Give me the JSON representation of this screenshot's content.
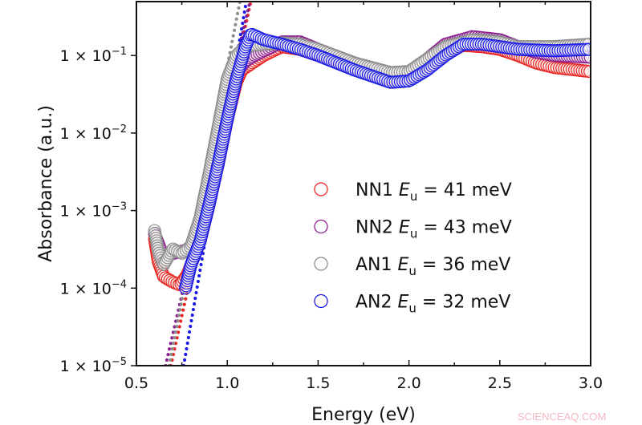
{
  "chart_data": {
    "type": "scatter",
    "title": "",
    "xlabel": "Energy (eV)",
    "ylabel": "Absorbance (a.u.)",
    "xlim": [
      0.5,
      3.0
    ],
    "ylim": [
      1e-05,
      0.5
    ],
    "yscale": "log",
    "grid": false,
    "legend_position": "center-right",
    "x_ticks": [
      "0.5",
      "1.0",
      "1.5",
      "2.0",
      "2.5",
      "3.0"
    ],
    "x_tick_values": [
      0.5,
      1.0,
      1.5,
      2.0,
      2.5,
      3.0
    ],
    "y_ticks": [
      {
        "value": 1e-05,
        "mantissa": "1 × 10",
        "exp": "−5"
      },
      {
        "value": 0.0001,
        "mantissa": "1 × 10",
        "exp": "−4"
      },
      {
        "value": 0.001,
        "mantissa": "1 × 10",
        "exp": "−3"
      },
      {
        "value": 0.01,
        "mantissa": "1 × 10",
        "exp": "−2"
      },
      {
        "value": 0.1,
        "mantissa": "1 × 10",
        "exp": "−1"
      }
    ],
    "series": [
      {
        "name": "NN1",
        "legend_prefix": "NN1 ",
        "legend_var": "E",
        "legend_sub": "u",
        "legend_suffix": " = 41 meV",
        "color": "#e8231f",
        "points": [
          [
            0.6,
            0.00043
          ],
          [
            0.62,
            0.00022
          ],
          [
            0.65,
            0.00014
          ],
          [
            0.7,
            0.00012
          ],
          [
            0.74,
            0.00011
          ],
          [
            0.78,
            0.00015
          ],
          [
            0.85,
            0.0004
          ],
          [
            0.9,
            0.0012
          ],
          [
            0.95,
            0.004
          ],
          [
            1.0,
            0.015
          ],
          [
            1.05,
            0.045
          ],
          [
            1.08,
            0.065
          ],
          [
            1.12,
            0.075
          ],
          [
            1.2,
            0.1
          ],
          [
            1.3,
            0.13
          ],
          [
            1.4,
            0.12
          ],
          [
            1.5,
            0.1
          ],
          [
            1.7,
            0.07
          ],
          [
            1.9,
            0.05
          ],
          [
            2.0,
            0.052
          ],
          [
            2.1,
            0.07
          ],
          [
            2.2,
            0.11
          ],
          [
            2.3,
            0.135
          ],
          [
            2.4,
            0.13
          ],
          [
            2.5,
            0.12
          ],
          [
            2.6,
            0.1
          ],
          [
            2.7,
            0.08
          ],
          [
            2.8,
            0.07
          ],
          [
            3.0,
            0.062
          ]
        ],
        "fit": [
          [
            0.69,
            1e-05
          ],
          [
            1.13,
            0.5
          ]
        ]
      },
      {
        "name": "NN2",
        "legend_prefix": "NN2 ",
        "legend_var": "E",
        "legend_sub": "u",
        "legend_suffix": " = 43 meV",
        "color": "#8a1f8f",
        "points": [
          [
            0.6,
            0.0005
          ],
          [
            0.65,
            0.00025
          ],
          [
            0.7,
            0.00028
          ],
          [
            0.8,
            0.00032
          ],
          [
            0.85,
            0.0006
          ],
          [
            0.9,
            0.002
          ],
          [
            0.95,
            0.007
          ],
          [
            1.0,
            0.025
          ],
          [
            1.05,
            0.06
          ],
          [
            1.1,
            0.085
          ],
          [
            1.15,
            0.1
          ],
          [
            1.3,
            0.15
          ],
          [
            1.4,
            0.15
          ],
          [
            1.5,
            0.12
          ],
          [
            1.7,
            0.08
          ],
          [
            1.9,
            0.06
          ],
          [
            2.0,
            0.062
          ],
          [
            2.1,
            0.09
          ],
          [
            2.2,
            0.14
          ],
          [
            2.35,
            0.175
          ],
          [
            2.5,
            0.16
          ],
          [
            2.6,
            0.13
          ],
          [
            2.7,
            0.11
          ],
          [
            2.8,
            0.1
          ],
          [
            3.0,
            0.095
          ]
        ],
        "fit": [
          [
            0.66,
            1e-05
          ],
          [
            1.125,
            0.5
          ]
        ]
      },
      {
        "name": "AN1",
        "legend_prefix": "AN1 ",
        "legend_var": "E",
        "legend_sub": "u",
        "legend_suffix": " = 36 meV",
        "color": "#8c8c8c",
        "points": [
          [
            0.6,
            0.00055
          ],
          [
            0.62,
            0.0003
          ],
          [
            0.65,
            0.0002
          ],
          [
            0.7,
            0.00032
          ],
          [
            0.75,
            0.00028
          ],
          [
            0.8,
            0.00035
          ],
          [
            0.85,
            0.0008
          ],
          [
            0.9,
            0.003
          ],
          [
            0.95,
            0.012
          ],
          [
            1.0,
            0.05
          ],
          [
            1.05,
            0.1
          ],
          [
            1.1,
            0.13
          ],
          [
            1.2,
            0.14
          ],
          [
            1.3,
            0.145
          ],
          [
            1.4,
            0.14
          ],
          [
            1.5,
            0.12
          ],
          [
            1.7,
            0.08
          ],
          [
            1.9,
            0.06
          ],
          [
            2.0,
            0.062
          ],
          [
            2.1,
            0.09
          ],
          [
            2.2,
            0.13
          ],
          [
            2.35,
            0.16
          ],
          [
            2.5,
            0.15
          ],
          [
            2.6,
            0.13
          ],
          [
            2.8,
            0.13
          ],
          [
            3.0,
            0.14
          ]
        ],
        "fit": [
          [
            0.68,
            1e-05
          ],
          [
            1.07,
            0.5
          ]
        ]
      },
      {
        "name": "AN2",
        "legend_prefix": "AN2 ",
        "legend_var": "E",
        "legend_sub": "u",
        "legend_suffix": " = 32 meV",
        "color": "#1a1ae6",
        "points": [
          [
            0.77,
            0.0001
          ],
          [
            0.8,
            0.0002
          ],
          [
            0.85,
            0.0004
          ],
          [
            0.9,
            0.0012
          ],
          [
            0.95,
            0.004
          ],
          [
            1.0,
            0.015
          ],
          [
            1.05,
            0.05
          ],
          [
            1.1,
            0.13
          ],
          [
            1.13,
            0.19
          ],
          [
            1.2,
            0.16
          ],
          [
            1.3,
            0.14
          ],
          [
            1.4,
            0.12
          ],
          [
            1.5,
            0.1
          ],
          [
            1.7,
            0.065
          ],
          [
            1.9,
            0.045
          ],
          [
            2.0,
            0.047
          ],
          [
            2.1,
            0.065
          ],
          [
            2.2,
            0.1
          ],
          [
            2.3,
            0.14
          ],
          [
            2.4,
            0.14
          ],
          [
            2.5,
            0.13
          ],
          [
            2.6,
            0.12
          ],
          [
            2.8,
            0.115
          ],
          [
            3.0,
            0.12
          ]
        ],
        "fit": [
          [
            0.76,
            1e-05
          ],
          [
            1.105,
            0.5
          ]
        ]
      }
    ]
  },
  "watermark": "SCIENCEAQ.COM"
}
